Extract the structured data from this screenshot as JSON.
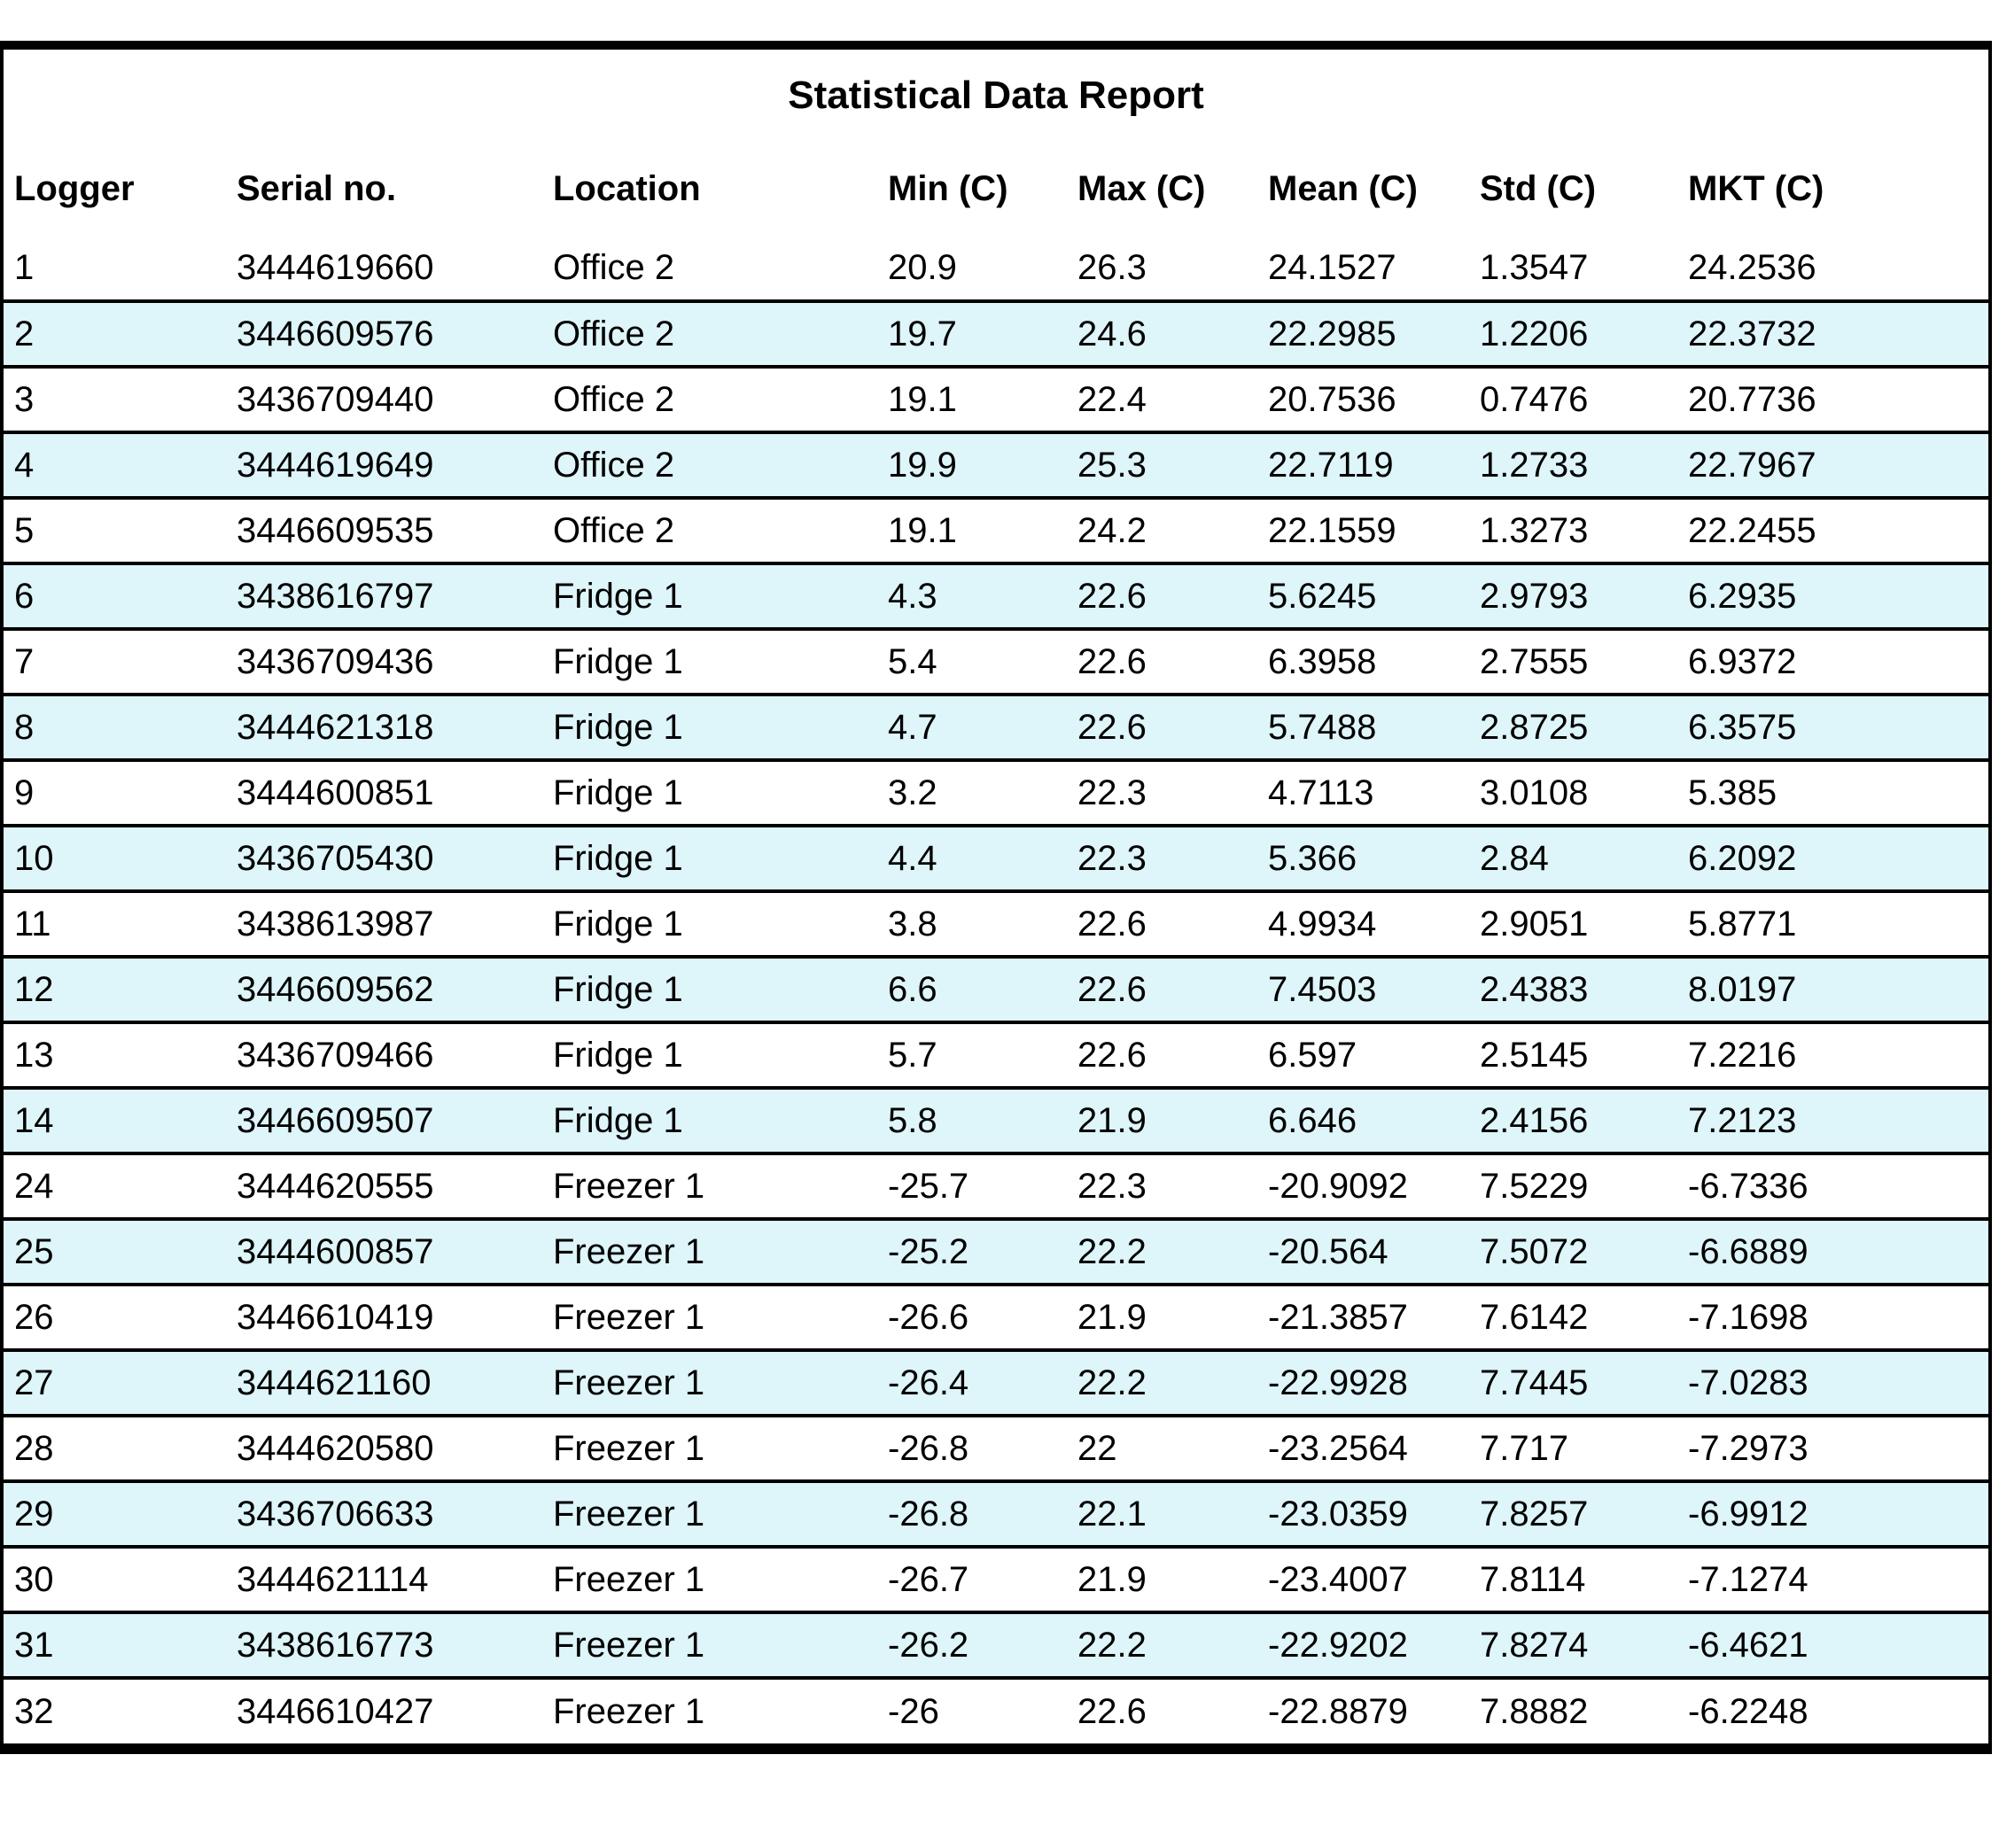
{
  "report": {
    "title": "Statistical Data Report",
    "columns": [
      "Logger",
      "Serial no.",
      "Location",
      "Min (C)",
      "Max (C)",
      "Mean (C)",
      "Std (C)",
      "MKT (C)"
    ],
    "rows": [
      [
        "1",
        "3444619660",
        "Office 2",
        "20.9",
        "26.3",
        "24.1527",
        "1.3547",
        "24.2536"
      ],
      [
        "2",
        "3446609576",
        "Office 2",
        "19.7",
        "24.6",
        "22.2985",
        "1.2206",
        "22.3732"
      ],
      [
        "3",
        "3436709440",
        "Office 2",
        "19.1",
        "22.4",
        "20.7536",
        "0.7476",
        "20.7736"
      ],
      [
        "4",
        "3444619649",
        "Office 2",
        "19.9",
        "25.3",
        "22.7119",
        "1.2733",
        "22.7967"
      ],
      [
        "5",
        "3446609535",
        "Office 2",
        "19.1",
        "24.2",
        "22.1559",
        "1.3273",
        "22.2455"
      ],
      [
        "6",
        "3438616797",
        "Fridge 1",
        "4.3",
        "22.6",
        "5.6245",
        "2.9793",
        "6.2935"
      ],
      [
        "7",
        "3436709436",
        "Fridge 1",
        "5.4",
        "22.6",
        "6.3958",
        "2.7555",
        "6.9372"
      ],
      [
        "8",
        "3444621318",
        "Fridge 1",
        "4.7",
        "22.6",
        "5.7488",
        "2.8725",
        "6.3575"
      ],
      [
        "9",
        "3444600851",
        "Fridge 1",
        "3.2",
        "22.3",
        "4.7113",
        "3.0108",
        "5.385"
      ],
      [
        "10",
        "3436705430",
        "Fridge 1",
        "4.4",
        "22.3",
        "5.366",
        "2.84",
        "6.2092"
      ],
      [
        "11",
        "3438613987",
        "Fridge 1",
        "3.8",
        "22.6",
        "4.9934",
        "2.9051",
        "5.8771"
      ],
      [
        "12",
        "3446609562",
        "Fridge 1",
        "6.6",
        "22.6",
        "7.4503",
        "2.4383",
        "8.0197"
      ],
      [
        "13",
        "3436709466",
        "Fridge 1",
        "5.7",
        "22.6",
        "6.597",
        "2.5145",
        "7.2216"
      ],
      [
        "14",
        "3446609507",
        "Fridge 1",
        "5.8",
        "21.9",
        "6.646",
        "2.4156",
        "7.2123"
      ],
      [
        "24",
        "3444620555",
        "Freezer 1",
        "-25.7",
        "22.3",
        "-20.9092",
        "7.5229",
        "-6.7336"
      ],
      [
        "25",
        "3444600857",
        "Freezer 1",
        "-25.2",
        "22.2",
        "-20.564",
        "7.5072",
        "-6.6889"
      ],
      [
        "26",
        "3446610419",
        "Freezer 1",
        "-26.6",
        "21.9",
        "-21.3857",
        "7.6142",
        "-7.1698"
      ],
      [
        "27",
        "3444621160",
        "Freezer 1",
        "-26.4",
        "22.2",
        "-22.9928",
        "7.7445",
        "-7.0283"
      ],
      [
        "28",
        "3444620580",
        "Freezer 1",
        "-26.8",
        "22",
        "-23.2564",
        "7.717",
        "-7.2973"
      ],
      [
        "29",
        "3436706633",
        "Freezer 1",
        "-26.8",
        "22.1",
        "-23.0359",
        "7.8257",
        "-6.9912"
      ],
      [
        "30",
        "3444621114",
        "Freezer 1",
        "-26.7",
        "21.9",
        "-23.4007",
        "7.8114",
        "-7.1274"
      ],
      [
        "31",
        "3438616773",
        "Freezer 1",
        "-26.2",
        "22.2",
        "-22.9202",
        "7.8274",
        "-6.4621"
      ],
      [
        "32",
        "3446610427",
        "Freezer 1",
        "-26",
        "22.6",
        "-22.8879",
        "7.8882",
        "-6.2248"
      ]
    ],
    "colors": {
      "row_alt_background": "#def5f9",
      "border": "#000000",
      "page_background": "#ffffff",
      "text": "#000000"
    }
  }
}
